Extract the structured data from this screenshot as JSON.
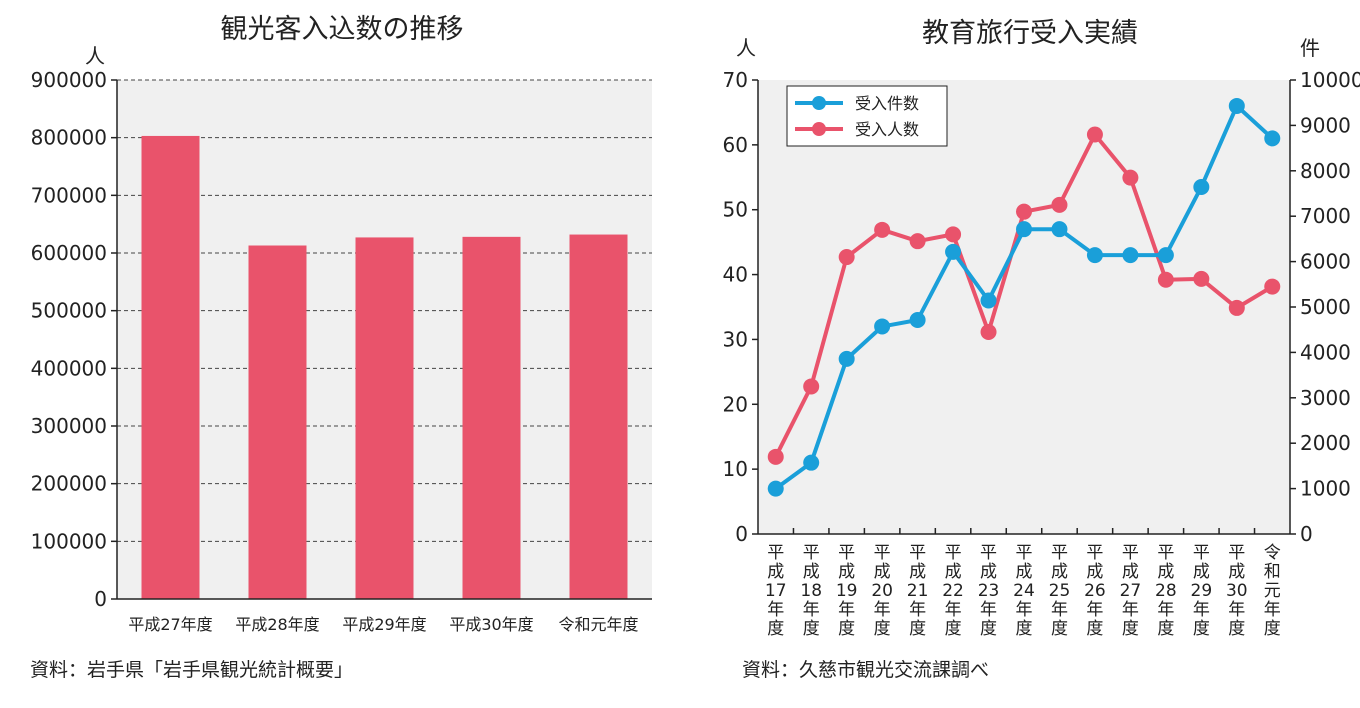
{
  "chart_data": [
    {
      "type": "bar",
      "title": "観光客入込数の推移",
      "y_unit": "人",
      "categories": [
        "平成27年度",
        "平成28年度",
        "平成29年度",
        "平成30年度",
        "令和元年度"
      ],
      "values": [
        803000,
        613000,
        627000,
        628000,
        632000
      ],
      "ylim": [
        0,
        900000
      ],
      "yticks": [
        "0",
        "100000",
        "200000",
        "300000",
        "400000",
        "500000",
        "600000",
        "700000",
        "800000",
        "900000"
      ],
      "grid": true,
      "colors": {
        "bar": "#e9536b",
        "plot_bg": "#f0f0f0"
      },
      "source": "資料：岩手県「岩手県観光統計概要」"
    },
    {
      "type": "line",
      "title": "教育旅行受入実績",
      "y_unit_left": "人",
      "y_unit_right": "件",
      "categories": [
        "平成17年度",
        "平成18年度",
        "平成19年度",
        "平成20年度",
        "平成21年度",
        "平成22年度",
        "平成23年度",
        "平成24年度",
        "平成25年度",
        "平成26年度",
        "平成27年度",
        "平成28年度",
        "平成29年度",
        "平成30年度",
        "令和元年度"
      ],
      "category_lines": [
        [
          "平",
          "成",
          "17",
          "年",
          "度"
        ],
        [
          "平",
          "成",
          "18",
          "年",
          "度"
        ],
        [
          "平",
          "成",
          "19",
          "年",
          "度"
        ],
        [
          "平",
          "成",
          "20",
          "年",
          "度"
        ],
        [
          "平",
          "成",
          "21",
          "年",
          "度"
        ],
        [
          "平",
          "成",
          "22",
          "年",
          "度"
        ],
        [
          "平",
          "成",
          "23",
          "年",
          "度"
        ],
        [
          "平",
          "成",
          "24",
          "年",
          "度"
        ],
        [
          "平",
          "成",
          "25",
          "年",
          "度"
        ],
        [
          "平",
          "成",
          "26",
          "年",
          "度"
        ],
        [
          "平",
          "成",
          "27",
          "年",
          "度"
        ],
        [
          "平",
          "成",
          "28",
          "年",
          "度"
        ],
        [
          "平",
          "成",
          "29",
          "年",
          "度"
        ],
        [
          "平",
          "成",
          "30",
          "年",
          "度"
        ],
        [
          "令",
          "和",
          "元",
          "年",
          "度"
        ]
      ],
      "ylim_left": [
        0,
        70
      ],
      "ylim_right": [
        0,
        10000
      ],
      "yticks_left": [
        "0",
        "10",
        "20",
        "30",
        "40",
        "50",
        "60",
        "70"
      ],
      "yticks_right": [
        "0",
        "1000",
        "2000",
        "3000",
        "4000",
        "5000",
        "6000",
        "7000",
        "8000",
        "9000",
        "10000"
      ],
      "series": [
        {
          "name": "受入件数",
          "axis": "left",
          "color": "#1a9fd9",
          "values": [
            7,
            11,
            27,
            32,
            33,
            43.5,
            36,
            47,
            47,
            43,
            43,
            43,
            53.5,
            66,
            61
          ]
        },
        {
          "name": "受入人数",
          "axis": "right",
          "color": "#e9536b",
          "values": [
            1700,
            3250,
            6100,
            6700,
            6450,
            6600,
            4450,
            7100,
            7250,
            8800,
            7850,
            5600,
            5620,
            4980,
            5450
          ]
        }
      ],
      "legend": "top-left",
      "grid": false,
      "colors": {
        "plot_bg": "#f0f0f0"
      },
      "source": "資料：久慈市観光交流課調べ"
    }
  ]
}
